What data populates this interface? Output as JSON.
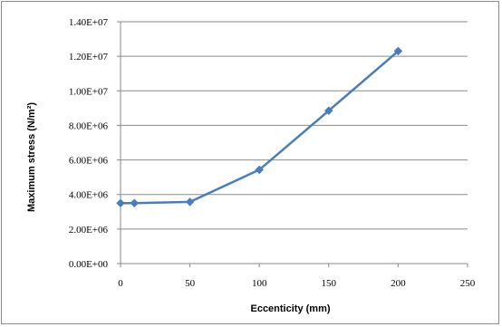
{
  "chart_data": {
    "type": "line",
    "title": "",
    "xlabel": "Eccenticity (mm)",
    "ylabel": "Maximum stress (N/m²)",
    "xlim": [
      0,
      250
    ],
    "ylim": [
      0,
      14000000
    ],
    "x_ticks": [
      0,
      50,
      100,
      150,
      200,
      250
    ],
    "x_tick_labels": [
      "0",
      "50",
      "100",
      "150",
      "200",
      "250"
    ],
    "y_ticks": [
      0,
      2000000,
      4000000,
      6000000,
      8000000,
      10000000,
      12000000,
      14000000
    ],
    "y_tick_labels": [
      "0.00E+00",
      "2.00E+06",
      "4.00E+06",
      "6.00E+06",
      "8.00E+06",
      "1.00E+07",
      "1.20E+07",
      "1.40E+07"
    ],
    "grid": "horizontal",
    "legend": "none",
    "series": [
      {
        "color": "#4A7EBB",
        "marker": "diamond",
        "x": [
          0,
          10,
          50,
          100,
          150,
          200
        ],
        "y": [
          3500000,
          3500000,
          3570000,
          5430000,
          8850000,
          12300000
        ]
      }
    ]
  }
}
